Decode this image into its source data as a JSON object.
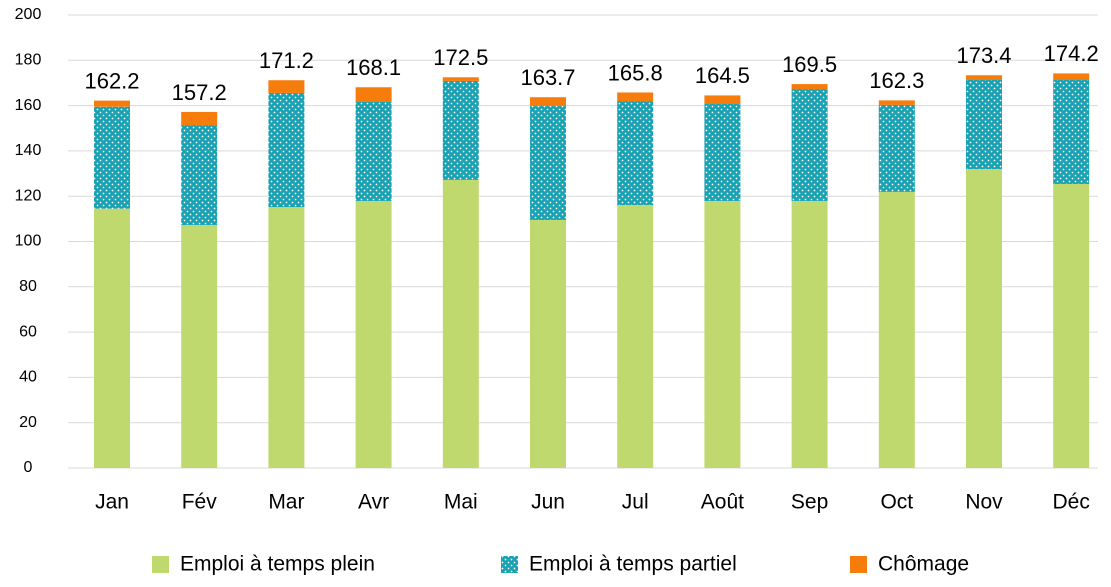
{
  "chart_data": {
    "type": "stacked_bar",
    "categories": [
      "Jan",
      "Fév",
      "Mar",
      "Avr",
      "Mai",
      "Jun",
      "Jul",
      "Août",
      "Sep",
      "Oct",
      "Nov",
      "Déc"
    ],
    "series": [
      {
        "name": "Emploi à temps plein",
        "color": "#c0d96f",
        "values": [
          114.5,
          107.3,
          115.2,
          117.9,
          127.2,
          109.5,
          116.1,
          117.9,
          117.9,
          121.9,
          132.0,
          125.4
        ]
      },
      {
        "name": "Emploi à temps partiel",
        "color": "#1aa2b3",
        "pattern": "dots",
        "values": [
          45.0,
          44.1,
          50.4,
          43.7,
          43.7,
          50.3,
          45.9,
          42.8,
          49.4,
          38.4,
          39.3,
          45.9
        ]
      },
      {
        "name": "Chômage",
        "color": "#f67c0c",
        "values": [
          2.7,
          5.8,
          5.6,
          6.5,
          1.6,
          3.9,
          3.8,
          3.8,
          2.2,
          2.0,
          2.1,
          2.9
        ]
      }
    ],
    "totals": [
      162.2,
      157.2,
      171.2,
      168.1,
      172.5,
      163.7,
      165.8,
      164.5,
      169.5,
      162.3,
      173.4,
      174.2
    ],
    "ylim": [
      0,
      200
    ],
    "yticks": [
      0,
      20,
      40,
      60,
      80,
      100,
      120,
      140,
      160,
      180,
      200
    ],
    "grid": true,
    "legend": "bottom"
  }
}
